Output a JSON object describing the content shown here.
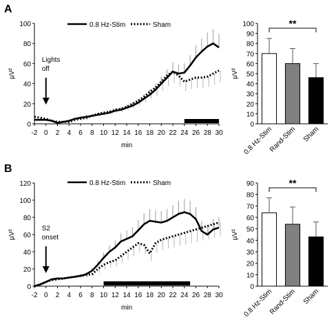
{
  "panels": {
    "A": {
      "label": "A"
    },
    "B": {
      "label": "B"
    }
  },
  "chart_data": [
    {
      "id": "A-line",
      "type": "line",
      "panel": "A",
      "xlabel": "min",
      "ylabel": "µV²",
      "xlim": [
        -2,
        30
      ],
      "ylim": [
        0,
        100
      ],
      "xticks": [
        -2,
        0,
        2,
        4,
        6,
        8,
        10,
        12,
        14,
        16,
        18,
        20,
        22,
        24,
        26,
        28,
        30
      ],
      "yticks": [
        0,
        20,
        40,
        60,
        80,
        100
      ],
      "annotation": {
        "lines": [
          "Lights",
          "off"
        ],
        "x": 0
      },
      "stim_period": [
        24,
        30
      ],
      "x": [
        -2,
        -1,
        0,
        1,
        2,
        3,
        4,
        5,
        6,
        7,
        8,
        9,
        10,
        11,
        12,
        13,
        14,
        15,
        16,
        17,
        18,
        19,
        20,
        21,
        22,
        23,
        24,
        25,
        26,
        27,
        28,
        29,
        30
      ],
      "series": [
        {
          "name": "0.8 Hz-Stim",
          "style": "solid",
          "values": [
            4,
            4,
            4,
            3,
            1,
            2,
            3,
            5,
            6,
            7,
            8,
            9,
            10,
            11,
            13,
            14,
            16,
            18,
            21,
            25,
            29,
            34,
            40,
            46,
            52,
            50,
            51,
            58,
            66,
            72,
            77,
            80,
            76
          ]
        },
        {
          "name": "Sham",
          "style": "dotted",
          "values": [
            7,
            6,
            5,
            3,
            2,
            2,
            2,
            4,
            5,
            6,
            8,
            10,
            11,
            12,
            14,
            15,
            17,
            20,
            23,
            27,
            32,
            36,
            42,
            48,
            52,
            48,
            42,
            44,
            46,
            46,
            47,
            50,
            53
          ]
        }
      ]
    },
    {
      "id": "A-bar",
      "type": "bar",
      "panel": "A",
      "ylabel": "µV²",
      "ylim": [
        0,
        100
      ],
      "yticks": [
        0,
        10,
        20,
        30,
        40,
        50,
        60,
        70,
        80,
        90,
        100
      ],
      "categories": [
        "0.8 Hz-Stim",
        "Rand-Stim",
        "Sham"
      ],
      "values": [
        70,
        60,
        46
      ],
      "errors": [
        15,
        15,
        14
      ],
      "colors": [
        "#ffffff",
        "#808080",
        "#000000"
      ],
      "significance": {
        "from": 0,
        "to": 2,
        "label": "**"
      }
    },
    {
      "id": "B-line",
      "type": "line",
      "panel": "B",
      "xlabel": "min",
      "ylabel": "µV²",
      "xlim": [
        -2,
        30
      ],
      "ylim": [
        0,
        120
      ],
      "xticks": [
        -2,
        0,
        2,
        4,
        6,
        8,
        10,
        12,
        14,
        16,
        18,
        20,
        22,
        24,
        26,
        28,
        30
      ],
      "yticks": [
        0,
        20,
        40,
        60,
        80,
        100,
        120
      ],
      "annotation": {
        "lines": [
          "S2",
          "onset"
        ],
        "x": 0
      },
      "stim_period": [
        10,
        25
      ],
      "x": [
        -2,
        -1,
        0,
        1,
        2,
        3,
        4,
        5,
        6,
        7,
        8,
        9,
        10,
        11,
        12,
        13,
        14,
        15,
        16,
        17,
        18,
        19,
        20,
        21,
        22,
        23,
        24,
        25,
        26,
        27,
        28,
        29,
        30
      ],
      "series": [
        {
          "name": "0.8 Hz-Stim",
          "style": "solid",
          "values": [
            0,
            2,
            5,
            8,
            9,
            9,
            10,
            11,
            12,
            14,
            18,
            25,
            33,
            40,
            45,
            52,
            55,
            58,
            65,
            72,
            76,
            75,
            74,
            76,
            80,
            84,
            86,
            84,
            78,
            64,
            60,
            66,
            68
          ]
        },
        {
          "name": "Sham",
          "style": "dotted",
          "values": [
            0,
            2,
            5,
            7,
            8,
            9,
            10,
            11,
            12,
            13,
            14,
            20,
            25,
            28,
            30,
            35,
            40,
            45,
            50,
            48,
            38,
            50,
            54,
            56,
            58,
            60,
            62,
            64,
            66,
            68,
            70,
            72,
            74
          ]
        }
      ]
    },
    {
      "id": "B-bar",
      "type": "bar",
      "panel": "B",
      "ylabel": "µV²",
      "ylim": [
        0,
        90
      ],
      "yticks": [
        0,
        10,
        20,
        30,
        40,
        50,
        60,
        70,
        80,
        90
      ],
      "categories": [
        "0.8 Hz-Stim",
        "Rand-Stim",
        "Sham"
      ],
      "values": [
        64,
        54,
        43
      ],
      "errors": [
        13,
        15,
        13
      ],
      "colors": [
        "#ffffff",
        "#808080",
        "#000000"
      ],
      "significance": {
        "from": 0,
        "to": 2,
        "label": "**"
      }
    }
  ]
}
